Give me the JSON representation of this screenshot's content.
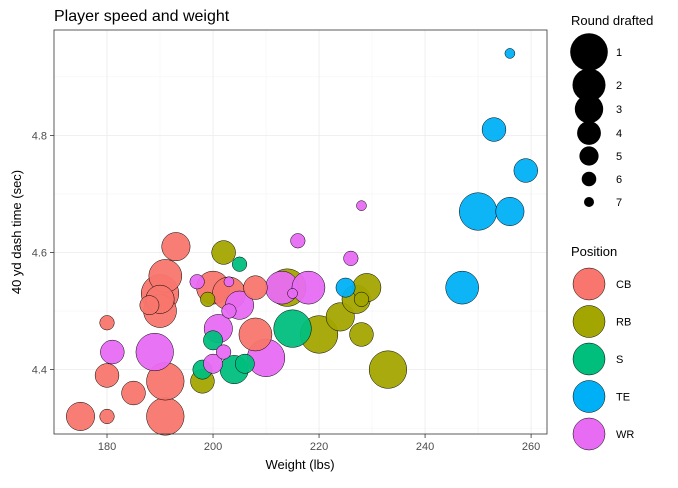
{
  "chart_data": {
    "type": "scatter",
    "title": "Player speed and weight",
    "xlabel": "Weight (lbs)",
    "ylabel": "40 yd dash time (sec)",
    "xlim": [
      170,
      263
    ],
    "ylim": [
      4.29,
      4.98
    ],
    "xticks": [
      "180",
      "200",
      "220",
      "240",
      "260"
    ],
    "yticks": [
      "4.4",
      "4.6",
      "4.8"
    ],
    "grid": true,
    "legend_position": "right",
    "size_legend": {
      "title": "Round drafted",
      "entries": [
        {
          "label": "1",
          "round": 1
        },
        {
          "label": "2",
          "round": 2
        },
        {
          "label": "3",
          "round": 3
        },
        {
          "label": "4",
          "round": 4
        },
        {
          "label": "5",
          "round": 5
        },
        {
          "label": "6",
          "round": 6
        },
        {
          "label": "7",
          "round": 7
        }
      ]
    },
    "color_legend": {
      "title": "Position",
      "entries": [
        {
          "label": "CB",
          "color": "#F8766D"
        },
        {
          "label": "RB",
          "color": "#A3A500"
        },
        {
          "label": "S",
          "color": "#00BF7D"
        },
        {
          "label": "TE",
          "color": "#00B0F6"
        },
        {
          "label": "WR",
          "color": "#E76BF3"
        }
      ]
    },
    "series": [
      {
        "name": "CB",
        "color": "#F8766D",
        "points": [
          {
            "x": 175,
            "y": 4.32,
            "round": 3
          },
          {
            "x": 180,
            "y": 4.32,
            "round": 6
          },
          {
            "x": 180,
            "y": 4.39,
            "round": 4
          },
          {
            "x": 180,
            "y": 4.48,
            "round": 6
          },
          {
            "x": 185,
            "y": 4.36,
            "round": 4
          },
          {
            "x": 188,
            "y": 4.51,
            "round": 5
          },
          {
            "x": 190,
            "y": 4.5,
            "round": 2
          },
          {
            "x": 190,
            "y": 4.52,
            "round": 3
          },
          {
            "x": 190,
            "y": 4.53,
            "round": 1
          },
          {
            "x": 191,
            "y": 4.32,
            "round": 1
          },
          {
            "x": 191,
            "y": 4.38,
            "round": 1
          },
          {
            "x": 191,
            "y": 4.56,
            "round": 2
          },
          {
            "x": 193,
            "y": 4.61,
            "round": 3
          },
          {
            "x": 200,
            "y": 4.54,
            "round": 2
          },
          {
            "x": 203,
            "y": 4.53,
            "round": 2
          },
          {
            "x": 208,
            "y": 4.46,
            "round": 2
          },
          {
            "x": 208,
            "y": 4.54,
            "round": 4
          }
        ]
      },
      {
        "name": "RB",
        "color": "#A3A500",
        "points": [
          {
            "x": 198,
            "y": 4.38,
            "round": 4
          },
          {
            "x": 199,
            "y": 4.52,
            "round": 6
          },
          {
            "x": 202,
            "y": 4.6,
            "round": 4
          },
          {
            "x": 214,
            "y": 4.54,
            "round": 1
          },
          {
            "x": 220,
            "y": 4.46,
            "round": 1
          },
          {
            "x": 224,
            "y": 4.49,
            "round": 3
          },
          {
            "x": 227,
            "y": 4.52,
            "round": 3
          },
          {
            "x": 228,
            "y": 4.46,
            "round": 4
          },
          {
            "x": 228,
            "y": 4.52,
            "round": 6
          },
          {
            "x": 229,
            "y": 4.54,
            "round": 3
          },
          {
            "x": 233,
            "y": 4.4,
            "round": 1
          }
        ]
      },
      {
        "name": "S",
        "color": "#00BF7D",
        "points": [
          {
            "x": 198,
            "y": 4.4,
            "round": 5
          },
          {
            "x": 200,
            "y": 4.45,
            "round": 5
          },
          {
            "x": 204,
            "y": 4.4,
            "round": 3
          },
          {
            "x": 205,
            "y": 4.58,
            "round": 6
          },
          {
            "x": 206,
            "y": 4.41,
            "round": 5
          },
          {
            "x": 215,
            "y": 4.47,
            "round": 1
          }
        ]
      },
      {
        "name": "TE",
        "color": "#00B0F6",
        "points": [
          {
            "x": 225,
            "y": 4.54,
            "round": 5
          },
          {
            "x": 247,
            "y": 4.54,
            "round": 2
          },
          {
            "x": 250,
            "y": 4.67,
            "round": 1
          },
          {
            "x": 253,
            "y": 4.81,
            "round": 4
          },
          {
            "x": 256,
            "y": 4.67,
            "round": 3
          },
          {
            "x": 256,
            "y": 4.94,
            "round": 7
          },
          {
            "x": 259,
            "y": 4.74,
            "round": 4
          }
        ]
      },
      {
        "name": "WR",
        "color": "#E76BF3",
        "points": [
          {
            "x": 181,
            "y": 4.43,
            "round": 4
          },
          {
            "x": 189,
            "y": 4.43,
            "round": 1
          },
          {
            "x": 197,
            "y": 4.55,
            "round": 6
          },
          {
            "x": 200,
            "y": 4.41,
            "round": 5
          },
          {
            "x": 201,
            "y": 4.47,
            "round": 3
          },
          {
            "x": 202,
            "y": 4.43,
            "round": 6
          },
          {
            "x": 203,
            "y": 4.5,
            "round": 6
          },
          {
            "x": 203,
            "y": 4.55,
            "round": 7
          },
          {
            "x": 205,
            "y": 4.51,
            "round": 3
          },
          {
            "x": 210,
            "y": 4.42,
            "round": 1
          },
          {
            "x": 213,
            "y": 4.54,
            "round": 2
          },
          {
            "x": 215,
            "y": 4.53,
            "round": 7
          },
          {
            "x": 216,
            "y": 4.62,
            "round": 6
          },
          {
            "x": 218,
            "y": 4.54,
            "round": 2
          },
          {
            "x": 226,
            "y": 4.59,
            "round": 6
          },
          {
            "x": 228,
            "y": 4.68,
            "round": 7
          }
        ]
      }
    ]
  }
}
